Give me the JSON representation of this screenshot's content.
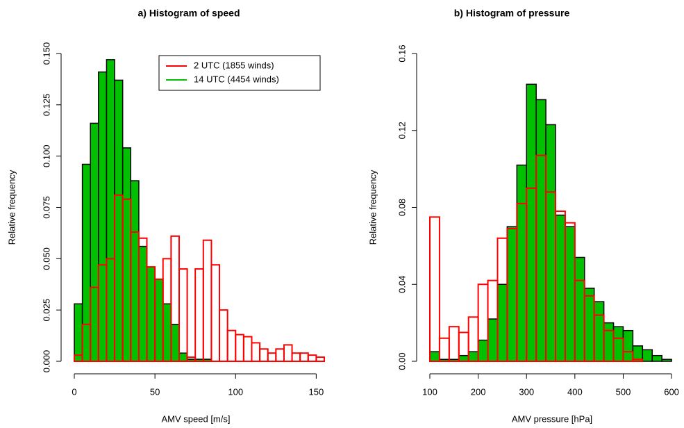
{
  "chart_data": [
    {
      "type": "histogram",
      "title": "a) Histogram of speed",
      "xlabel": "AMV speed [m/s]",
      "ylabel": "Relative frequency",
      "bins": [
        0,
        5,
        10,
        15,
        20,
        25,
        30,
        35,
        40,
        45,
        50,
        55,
        60,
        65,
        70,
        75,
        80,
        85,
        90,
        95,
        100,
        105,
        110,
        115,
        120,
        125,
        130,
        135,
        140,
        145,
        150,
        155
      ],
      "xlim": [
        0,
        155
      ],
      "xticks": [
        0,
        50,
        100,
        150
      ],
      "ylim": [
        0,
        0.15
      ],
      "yticks": [
        {
          "value": 0,
          "label": "0.000"
        },
        {
          "value": 0.025,
          "label": "0.025"
        },
        {
          "value": 0.05,
          "label": "0.050"
        },
        {
          "value": 0.075,
          "label": "0.075"
        },
        {
          "value": 0.1,
          "label": "0.100"
        },
        {
          "value": 0.125,
          "label": "0.125"
        },
        {
          "value": 0.15,
          "label": "0.150"
        }
      ],
      "legend": "top right",
      "series": [
        {
          "name": "14 UTC (4454 winds)",
          "color": "#00c000",
          "filled": true,
          "values": [
            0.028,
            0.096,
            0.116,
            0.141,
            0.147,
            0.137,
            0.104,
            0.088,
            0.056,
            0.046,
            0.04,
            0.028,
            0.018,
            0.004,
            0.001,
            0.001,
            0.001,
            0,
            0,
            0,
            0,
            0,
            0,
            0,
            0,
            0,
            0,
            0,
            0,
            0,
            0
          ]
        },
        {
          "name": "2 UTC (1855 winds)",
          "color": "#ff0000",
          "filled": false,
          "values": [
            0.003,
            0.018,
            0.036,
            0.047,
            0.05,
            0.081,
            0.079,
            0.063,
            0.06,
            0.046,
            0.04,
            0.05,
            0.061,
            0.045,
            0.002,
            0.045,
            0.059,
            0.047,
            0.025,
            0.015,
            0.013,
            0.012,
            0.009,
            0.006,
            0.004,
            0.006,
            0.008,
            0.004,
            0.004,
            0.003,
            0.002
          ]
        }
      ]
    },
    {
      "type": "histogram",
      "title": "b) Histogram of pressure",
      "xlabel": "AMV pressure [hPa]",
      "ylabel": "Relative frequency",
      "bins": [
        100,
        120,
        140,
        160,
        180,
        200,
        220,
        240,
        260,
        280,
        300,
        320,
        340,
        360,
        380,
        400,
        420,
        440,
        460,
        480,
        500,
        520,
        540,
        560,
        580,
        600,
        620
      ],
      "xlim": [
        100,
        620
      ],
      "xticks": [
        100,
        200,
        300,
        400,
        500,
        600
      ],
      "ylim": [
        0,
        0.16
      ],
      "yticks": [
        {
          "value": 0,
          "label": "0.00"
        },
        {
          "value": 0.04,
          "label": "0.04"
        },
        {
          "value": 0.08,
          "label": "0.08"
        },
        {
          "value": 0.12,
          "label": "0.12"
        },
        {
          "value": 0.16,
          "label": "0.16"
        }
      ],
      "series": [
        {
          "color": "#00c000",
          "filled": true,
          "values": [
            0.005,
            0.001,
            0.001,
            0.003,
            0.005,
            0.011,
            0.022,
            0.04,
            0.07,
            0.102,
            0.144,
            0.136,
            0.123,
            0.076,
            0.07,
            0.054,
            0.038,
            0.031,
            0.02,
            0.018,
            0.016,
            0.008,
            0.006,
            0.003,
            0.001,
            0
          ]
        },
        {
          "color": "#ff0000",
          "filled": false,
          "values": [
            0.075,
            0.012,
            0.018,
            0.015,
            0.023,
            0.04,
            0.042,
            0.064,
            0.069,
            0.082,
            0.09,
            0.107,
            0.088,
            0.078,
            0.072,
            0.042,
            0.034,
            0.024,
            0.016,
            0.012,
            0.005,
            0.001,
            0,
            0,
            0,
            0
          ]
        }
      ]
    }
  ]
}
